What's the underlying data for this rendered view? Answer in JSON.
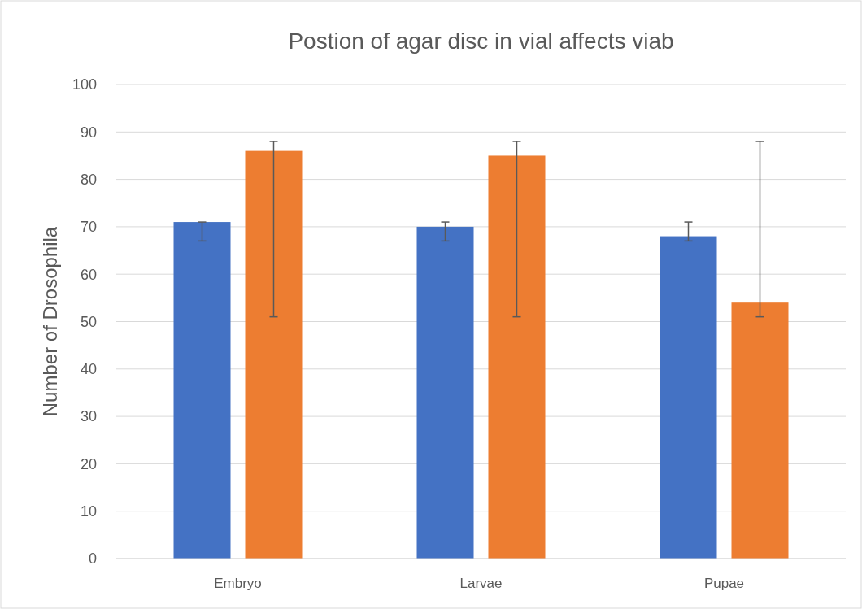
{
  "chart_data": {
    "type": "bar",
    "title": "Postion of agar disc in vial affects viab",
    "ylabel": "Number of Drosophila",
    "categories": [
      "Embryo",
      "Larvae",
      "Pupae"
    ],
    "series": [
      {
        "color": "#4472c4",
        "values": [
          71,
          70,
          68
        ],
        "errors": [
          [
            67,
            71
          ],
          [
            67,
            71
          ],
          [
            67,
            71
          ]
        ]
      },
      {
        "color": "#ed7d31",
        "values": [
          86,
          85,
          54
        ],
        "errors": [
          [
            51,
            88
          ],
          [
            51,
            88
          ],
          [
            51,
            88
          ]
        ]
      }
    ],
    "ylim": [
      0,
      100
    ],
    "yticks": [
      0,
      10,
      20,
      30,
      40,
      50,
      60,
      70,
      80,
      90,
      100
    ],
    "grid": "y"
  }
}
